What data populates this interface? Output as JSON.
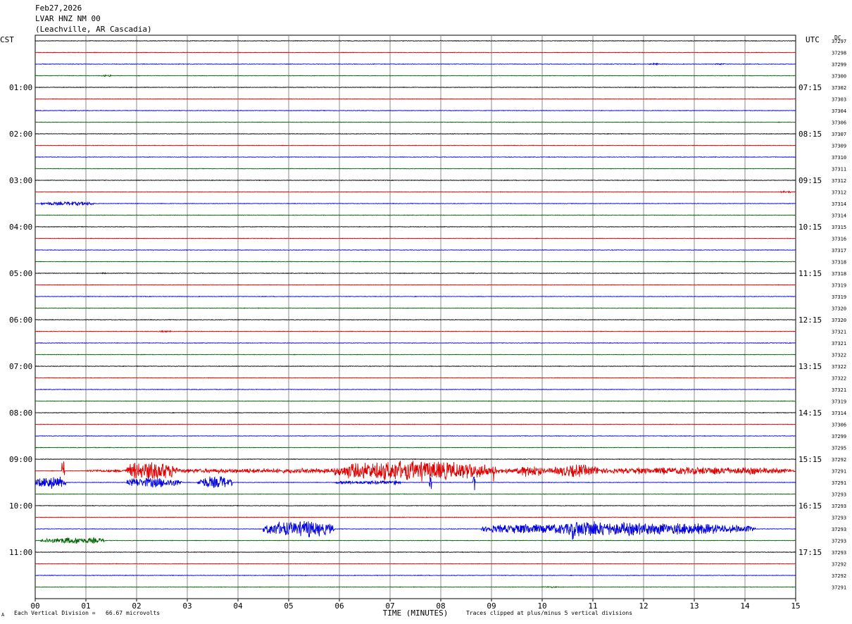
{
  "header": {
    "date": "Feb27,2026",
    "station": "LVAR HNZ NM 00",
    "location": "(Leachville, AR Cascadia)"
  },
  "footer": {
    "left_mark": "A",
    "division_note": "Each Vertical Division =   66.67 microvolts",
    "clip_note": "Traces clipped at plus/minus 5 vertical divisions"
  },
  "chart_data": {
    "type": "line",
    "title": "LVAR HNZ NM 00",
    "xlabel": "TIME (MINUTES)",
    "xlim": [
      0,
      15
    ],
    "x_tick_labels": [
      "00",
      "01",
      "02",
      "03",
      "04",
      "05",
      "06",
      "07",
      "08",
      "09",
      "10",
      "11",
      "12",
      "13",
      "14",
      "15"
    ],
    "left_axis_title": "CST",
    "right_axis_title": "UTC",
    "dc_label": "DC",
    "trace_colors": [
      "#000000",
      "#e00000",
      "#0000e0",
      "#006600"
    ],
    "traces_per_hour": 4,
    "hour_labels_cst": [
      "01:00",
      "02:00",
      "03:00",
      "04:00",
      "05:00",
      "06:00",
      "07:00",
      "08:00",
      "09:00",
      "10:00",
      "11:00"
    ],
    "hour_labels_utc": [
      "07:15",
      "08:15",
      "09:15",
      "10:15",
      "11:15",
      "12:15",
      "13:15",
      "14:15",
      "15:15",
      "16:15",
      "17:15"
    ],
    "dc_offsets": [
      37297,
      37298,
      37299,
      37300,
      37302,
      37303,
      37304,
      37306,
      37307,
      37309,
      37310,
      37311,
      37312,
      37312,
      37314,
      37314,
      37315,
      37316,
      37317,
      37318,
      37318,
      37319,
      37319,
      37320,
      37320,
      37321,
      37321,
      37322,
      37322,
      37322,
      37321,
      37319,
      37314,
      37306,
      37299,
      37295,
      37292,
      37291,
      37291,
      37293,
      37293,
      37293,
      37293,
      37293,
      37293,
      37292,
      37292,
      37291
    ],
    "events": [
      {
        "trace": 3,
        "start_min": 1.3,
        "end_min": 1.5,
        "amplitude_div": 0.4
      },
      {
        "trace": 2,
        "start_min": 12.1,
        "end_min": 12.3,
        "amplitude_div": 0.5
      },
      {
        "trace": 2,
        "start_min": 13.4,
        "end_min": 13.6,
        "amplitude_div": 0.3
      },
      {
        "trace": 13,
        "start_min": 14.7,
        "end_min": 14.9,
        "amplitude_div": 0.5
      },
      {
        "trace": 14,
        "start_min": 0.1,
        "end_min": 1.2,
        "amplitude_div": 1.0
      },
      {
        "trace": 20,
        "start_min": 1.2,
        "end_min": 1.4,
        "amplitude_div": 0.4
      },
      {
        "trace": 25,
        "start_min": 2.4,
        "end_min": 2.7,
        "amplitude_div": 0.3
      },
      {
        "trace": 37,
        "start_min": 1.0,
        "end_min": 15.0,
        "amplitude_div": 1.3
      },
      {
        "trace": 37,
        "start_min": 1.8,
        "end_min": 2.8,
        "amplitude_div": 5.0
      },
      {
        "trace": 37,
        "start_min": 5.9,
        "end_min": 9.0,
        "amplitude_div": 5.0
      },
      {
        "trace": 37,
        "start_min": 9.5,
        "end_min": 10.0,
        "amplitude_div": 3.0
      },
      {
        "trace": 37,
        "start_min": 10.2,
        "end_min": 11.2,
        "amplitude_div": 3.0
      },
      {
        "trace": 37,
        "start_min": 11.4,
        "end_min": 14.9,
        "amplitude_div": 2.0
      },
      {
        "trace": 38,
        "start_min": 0.0,
        "end_min": 0.6,
        "amplitude_div": 3.0
      },
      {
        "trace": 38,
        "start_min": 1.8,
        "end_min": 2.9,
        "amplitude_div": 2.5
      },
      {
        "trace": 38,
        "start_min": 3.2,
        "end_min": 3.9,
        "amplitude_div": 3.0
      },
      {
        "trace": 38,
        "start_min": 5.9,
        "end_min": 7.2,
        "amplitude_div": 1.0
      },
      {
        "trace": 42,
        "start_min": 4.5,
        "end_min": 5.9,
        "amplitude_div": 4.0
      },
      {
        "trace": 42,
        "start_min": 8.8,
        "end_min": 14.2,
        "amplitude_div": 3.0
      },
      {
        "trace": 42,
        "start_min": 10.4,
        "end_min": 11.4,
        "amplitude_div": 4.5
      },
      {
        "trace": 43,
        "start_min": 0.1,
        "end_min": 1.4,
        "amplitude_div": 1.6
      },
      {
        "trace": 47,
        "start_min": 10.0,
        "end_min": 10.3,
        "amplitude_div": 0.3
      }
    ],
    "spikes": [
      {
        "trace": 37,
        "at_min": 0.55,
        "amplitude_div": 5.0
      },
      {
        "trace": 37,
        "at_min": 6.65,
        "amplitude_div": 4.0
      },
      {
        "trace": 37,
        "at_min": 6.9,
        "amplitude_div": 4.0
      },
      {
        "trace": 37,
        "at_min": 7.45,
        "amplitude_div": 5.0
      },
      {
        "trace": 37,
        "at_min": 7.8,
        "amplitude_div": 5.0
      },
      {
        "trace": 37,
        "at_min": 8.05,
        "amplitude_div": 5.0
      },
      {
        "trace": 37,
        "at_min": 8.3,
        "amplitude_div": 5.0
      },
      {
        "trace": 37,
        "at_min": 8.6,
        "amplitude_div": 5.0
      },
      {
        "trace": 37,
        "at_min": 8.85,
        "amplitude_div": 5.0
      },
      {
        "trace": 37,
        "at_min": 9.05,
        "amplitude_div": 5.0
      },
      {
        "trace": 38,
        "at_min": 0.5,
        "amplitude_div": 3.0
      },
      {
        "trace": 38,
        "at_min": 7.1,
        "amplitude_div": 3.0
      },
      {
        "trace": 38,
        "at_min": 7.8,
        "amplitude_div": 4.0
      },
      {
        "trace": 38,
        "at_min": 8.65,
        "amplitude_div": 5.0
      },
      {
        "trace": 42,
        "at_min": 5.4,
        "amplitude_div": 5.0
      },
      {
        "trace": 42,
        "at_min": 10.6,
        "amplitude_div": 5.0
      },
      {
        "trace": 42,
        "at_min": 11.35,
        "amplitude_div": 4.0
      }
    ],
    "grid": true
  }
}
